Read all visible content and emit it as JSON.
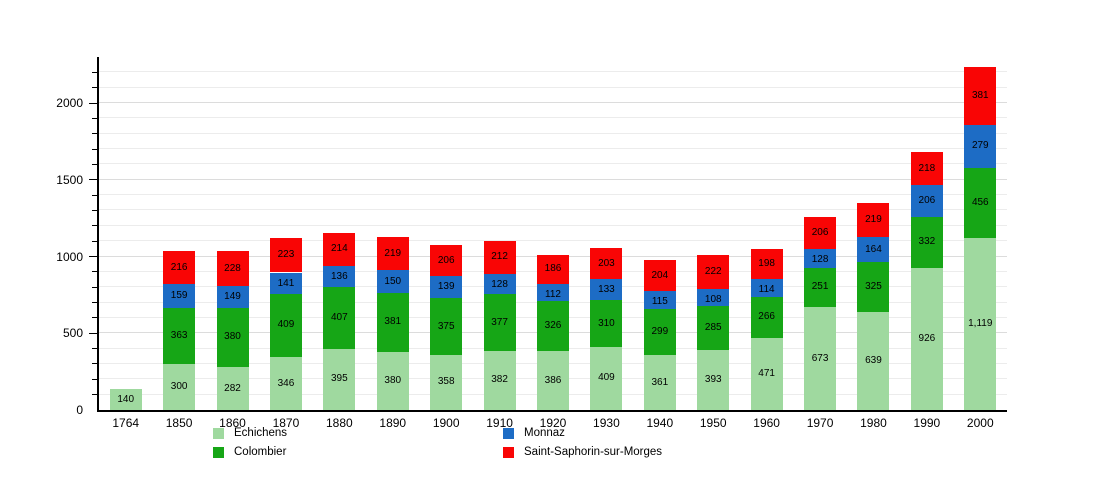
{
  "chart_data": {
    "type": "bar",
    "stacked": true,
    "title": "",
    "xlabel": "",
    "ylabel": "",
    "categories": [
      "1764",
      "1850",
      "1860",
      "1870",
      "1880",
      "1890",
      "1900",
      "1910",
      "1920",
      "1930",
      "1940",
      "1950",
      "1960",
      "1970",
      "1980",
      "1990",
      "2000"
    ],
    "series": [
      {
        "name": "Echichens",
        "color": "#9fd99f",
        "values": [
          140,
          300,
          282,
          346,
          395,
          380,
          358,
          382,
          386,
          409,
          361,
          393,
          471,
          673,
          639,
          926,
          1119
        ]
      },
      {
        "name": "Colombier",
        "color": "#16a616",
        "values": [
          0,
          363,
          380,
          409,
          407,
          381,
          375,
          377,
          326,
          310,
          299,
          285,
          266,
          251,
          325,
          332,
          456
        ]
      },
      {
        "name": "Monnaz",
        "color": "#1d6cc5",
        "values": [
          0,
          159,
          149,
          141,
          136,
          150,
          139,
          128,
          112,
          133,
          115,
          108,
          114,
          128,
          164,
          206,
          279
        ]
      },
      {
        "name": "Saint-Saphorin-sur-Morges",
        "color": "#f90505",
        "values": [
          0,
          216,
          228,
          223,
          214,
          219,
          206,
          212,
          186,
          203,
          204,
          222,
          198,
          206,
          219,
          218,
          381
        ]
      }
    ],
    "totals": [
      140,
      1038,
      1039,
      1119,
      1152,
      1130,
      1078,
      1099,
      1010,
      1055,
      979,
      1008,
      1049,
      1258,
      1347,
      1682,
      2235
    ],
    "ylim": [
      0,
      2300
    ],
    "ytick_labels": [
      "0",
      "500",
      "1000",
      "1500",
      "2000"
    ],
    "yticks_major": [
      0,
      500,
      1000,
      1500,
      2000
    ],
    "minor_tick_interval": 100,
    "grid": "horizontal",
    "bar_labels_shown": true,
    "bar_label_example_formatted": "1,119",
    "legend_position": "bottom",
    "legend_layout": [
      [
        0,
        1
      ],
      [
        2,
        3
      ]
    ]
  }
}
